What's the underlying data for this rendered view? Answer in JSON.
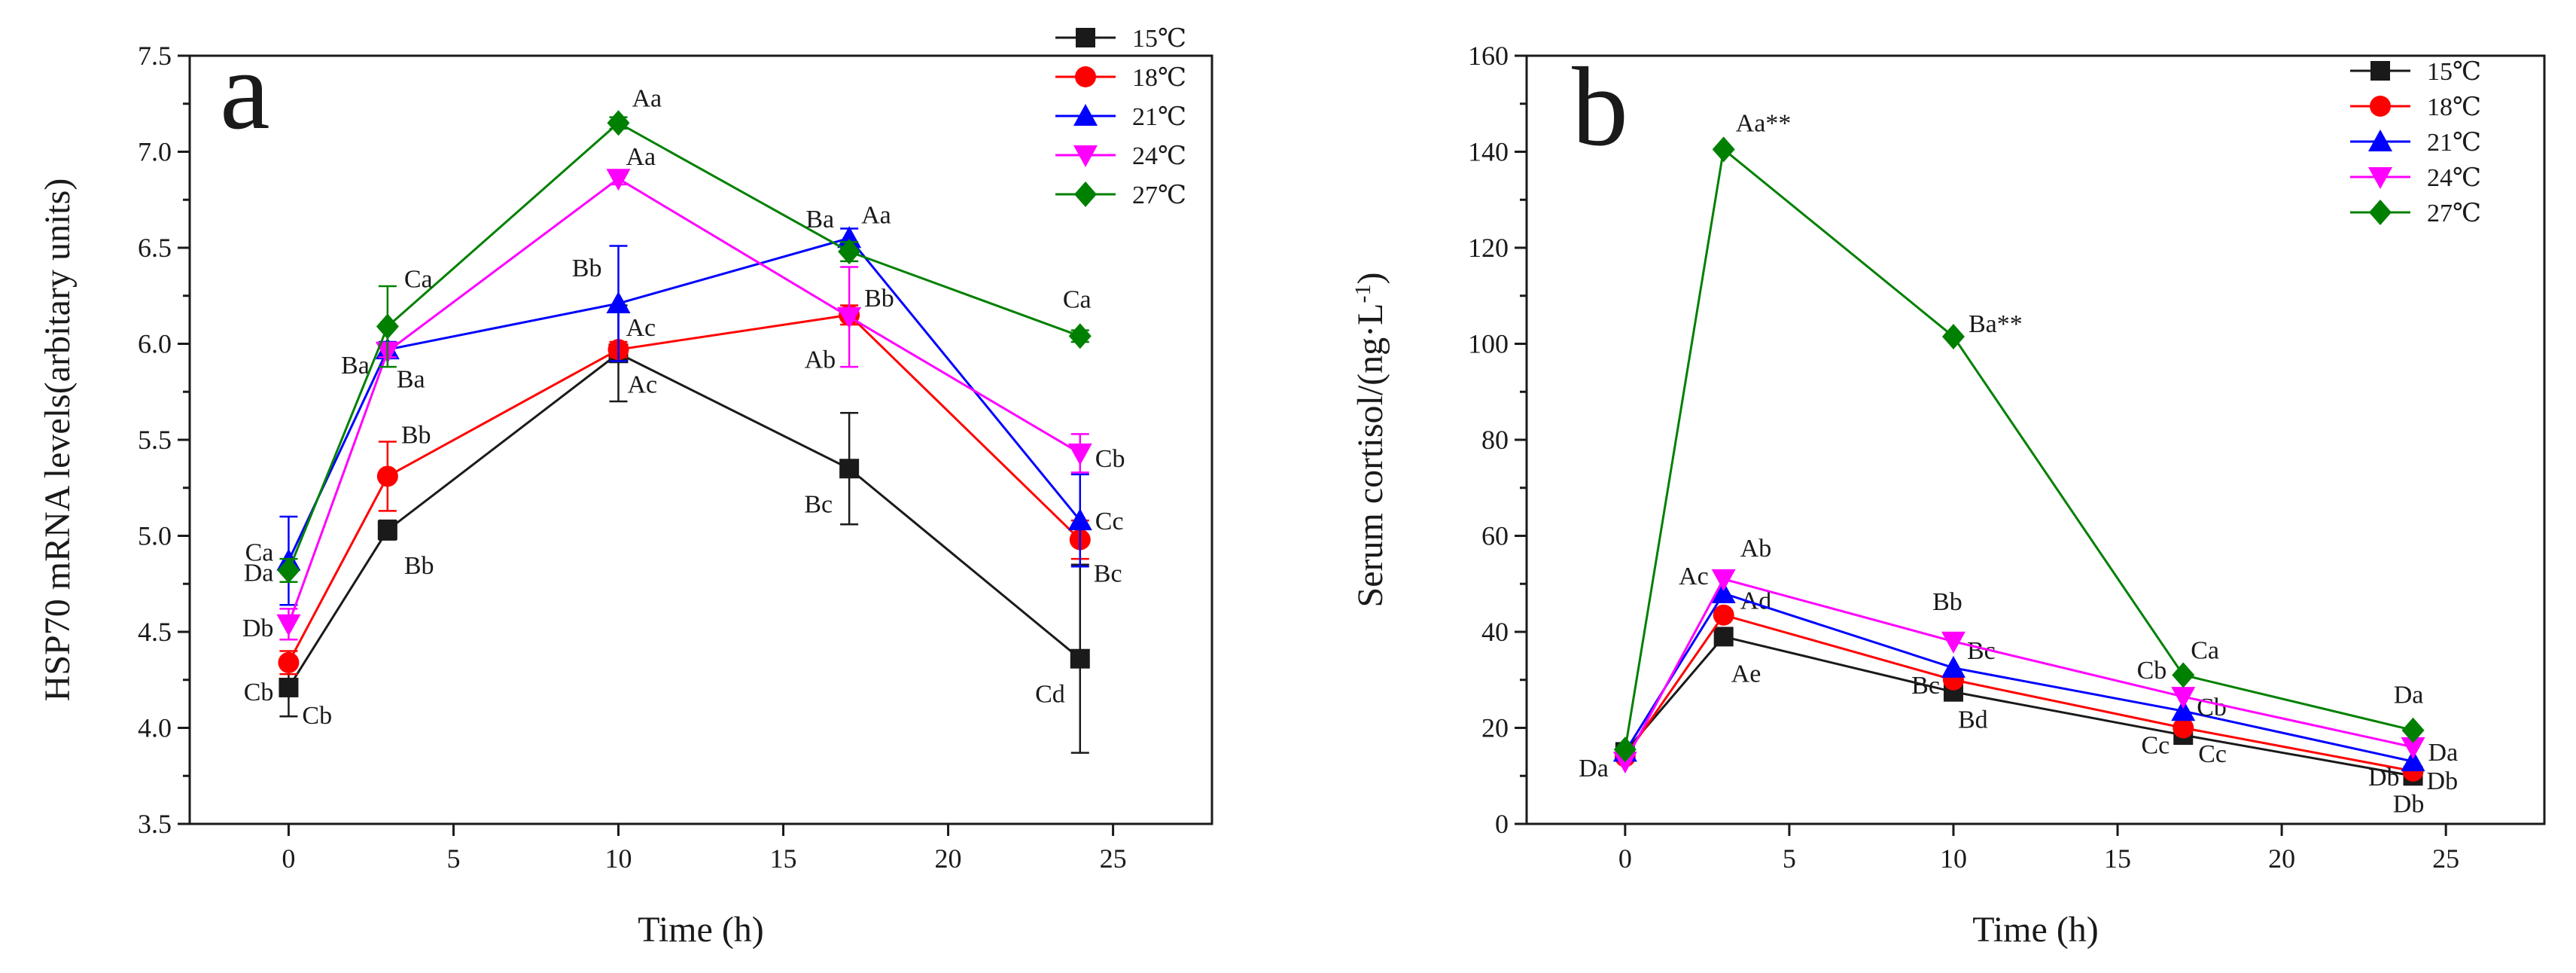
{
  "chart_data": [
    {
      "type": "line",
      "panel_letter": "a",
      "xlabel": "Time (h)",
      "ylabel": "HSP70 mRNA levels(arbitary units)",
      "xlim": [
        -3,
        28
      ],
      "ylim": [
        3.5,
        7.5
      ],
      "xticks": [
        0,
        5,
        10,
        15,
        20,
        25
      ],
      "yticks": [
        3.5,
        4.0,
        4.5,
        5.0,
        5.5,
        6.0,
        6.5,
        7.0,
        7.5
      ],
      "ytick_labels": [
        "3.5",
        "4.0",
        "4.5",
        "5.0",
        "5.5",
        "6.0",
        "6.5",
        "7.0",
        "7.5"
      ],
      "legend_position": "top-right",
      "x": [
        0,
        3,
        10,
        17,
        24
      ],
      "series": [
        {
          "name": "15℃",
          "color": "#1a1a1a",
          "marker": "square",
          "values": [
            4.21,
            5.03,
            5.95,
            5.35,
            4.36
          ],
          "errors": [
            0.15,
            0.05,
            0.25,
            0.29,
            0.49
          ],
          "labels": [
            "Cb",
            "Bb",
            "Ac",
            "Bc",
            "Cd"
          ]
        },
        {
          "name": "18℃",
          "color": "#ff0000",
          "marker": "circle",
          "values": [
            4.34,
            5.31,
            5.97,
            6.15,
            4.98
          ],
          "errors": [
            0.06,
            0.18,
            0.04,
            0.05,
            0.1
          ],
          "labels": [
            "Cb",
            "Bb",
            "Ac",
            "Ab",
            "Bc"
          ]
        },
        {
          "name": "21℃",
          "color": "#0000ff",
          "marker": "triangle-up",
          "values": [
            4.87,
            5.97,
            6.21,
            6.55,
            5.08
          ],
          "errors": [
            0.23,
            0.04,
            0.3,
            0.05,
            0.24
          ],
          "labels": [
            "Ca",
            "Ba",
            "Bb",
            "Aa",
            "Cc"
          ]
        },
        {
          "name": "24℃",
          "color": "#ff00ff",
          "marker": "triangle-down",
          "values": [
            4.54,
            5.96,
            6.86,
            6.14,
            5.43
          ],
          "errors": [
            0.08,
            0.03,
            0.03,
            0.26,
            0.1
          ],
          "labels": [
            "Db",
            "Ba",
            "Aa",
            "Bb",
            "Cb"
          ]
        },
        {
          "name": "27℃",
          "color": "#008000",
          "marker": "diamond",
          "values": [
            4.82,
            6.09,
            7.15,
            6.48,
            6.04
          ],
          "errors": [
            0.06,
            0.21,
            0.03,
            0.05,
            0.03
          ],
          "labels": [
            "Da",
            "Ca",
            "Aa",
            "Ba",
            "Ca"
          ]
        }
      ]
    },
    {
      "type": "line",
      "panel_letter": "b",
      "xlabel": "Time (h)",
      "ylabel": "Serum cortisol/(ng·L",
      "ylabel_superscript": "-1",
      "ylabel_suffix": ")",
      "xlim": [
        -3,
        28
      ],
      "ylim": [
        0,
        160
      ],
      "xticks": [
        0,
        5,
        10,
        15,
        20,
        25
      ],
      "yticks": [
        0,
        20,
        40,
        60,
        80,
        100,
        120,
        140,
        160
      ],
      "ytick_labels": [
        "0",
        "20",
        "40",
        "60",
        "80",
        "100",
        "120",
        "140",
        "160"
      ],
      "legend_position": "top-right",
      "x": [
        0,
        3,
        10,
        17,
        24
      ],
      "series": [
        {
          "name": "15℃",
          "color": "#1a1a1a",
          "marker": "square",
          "values": [
            15,
            39,
            27.5,
            18.5,
            10
          ],
          "labels": [
            "",
            "Ae",
            "Bd",
            "Cc",
            "Db"
          ]
        },
        {
          "name": "18℃",
          "color": "#ff0000",
          "marker": "circle",
          "values": [
            14,
            43.5,
            30,
            20,
            11
          ],
          "labels": [
            "",
            "Ad",
            "Bc",
            "Cc",
            "Db"
          ]
        },
        {
          "name": "21℃",
          "color": "#0000ff",
          "marker": "triangle-up",
          "values": [
            15,
            48,
            32.5,
            23.5,
            13
          ],
          "labels": [
            "",
            "Ac",
            "Bc",
            "Cb",
            "Db"
          ]
        },
        {
          "name": "24℃",
          "color": "#ff00ff",
          "marker": "triangle-down",
          "values": [
            13,
            51,
            38,
            26.5,
            16
          ],
          "labels": [
            "Da",
            "Ab",
            "Bb",
            "Cb",
            "Da"
          ]
        },
        {
          "name": "27℃",
          "color": "#008000",
          "marker": "diamond",
          "values": [
            15.5,
            140.5,
            101.5,
            31,
            19.5
          ],
          "labels": [
            "",
            "Aa**",
            "Ba**",
            "Ca",
            "Da"
          ]
        }
      ]
    }
  ]
}
